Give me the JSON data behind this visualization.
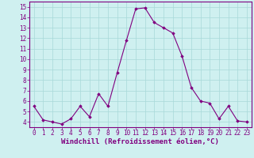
{
  "hours": [
    0,
    1,
    2,
    3,
    4,
    5,
    6,
    7,
    8,
    9,
    10,
    11,
    12,
    13,
    14,
    15,
    16,
    17,
    18,
    19,
    20,
    21,
    22,
    23
  ],
  "values": [
    5.5,
    4.2,
    4.0,
    3.8,
    4.3,
    5.5,
    4.5,
    6.7,
    5.5,
    8.7,
    11.8,
    14.8,
    14.9,
    13.5,
    13.0,
    12.5,
    10.3,
    7.3,
    6.0,
    5.8,
    4.3,
    5.5,
    4.1,
    4.0
  ],
  "xlabel": "Windchill (Refroidissement éolien,°C)",
  "ylim": [
    3.5,
    15.5
  ],
  "xlim": [
    -0.5,
    23.5
  ],
  "yticks": [
    4,
    5,
    6,
    7,
    8,
    9,
    10,
    11,
    12,
    13,
    14,
    15
  ],
  "xticks": [
    0,
    1,
    2,
    3,
    4,
    5,
    6,
    7,
    8,
    9,
    10,
    11,
    12,
    13,
    14,
    15,
    16,
    17,
    18,
    19,
    20,
    21,
    22,
    23
  ],
  "line_color": "#800080",
  "marker": "D",
  "marker_size": 1.8,
  "background_color": "#cff0f0",
  "grid_color": "#a8d8d8",
  "axis_label_color": "#800080",
  "tick_label_color": "#800080",
  "tick_label_fontsize": 5.5,
  "xlabel_fontsize": 6.5
}
